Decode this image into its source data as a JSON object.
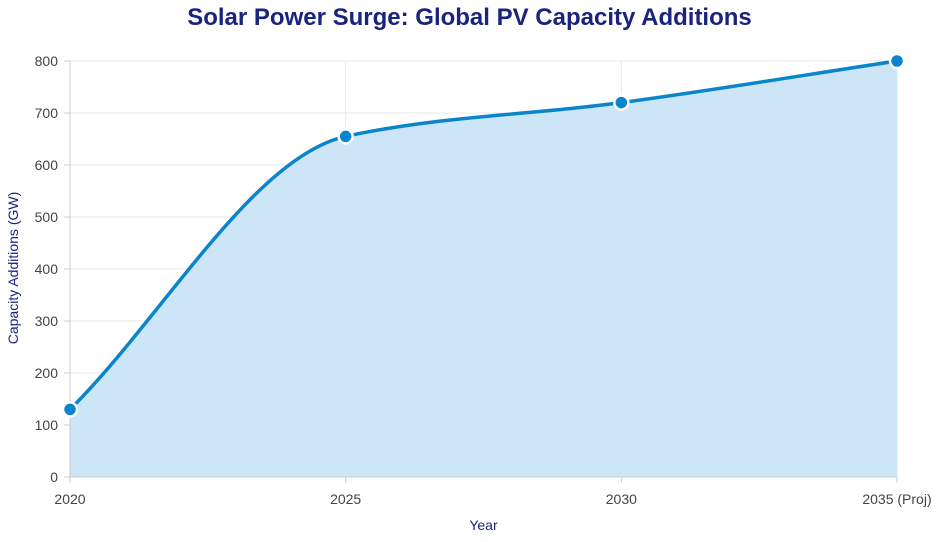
{
  "chart_data": {
    "type": "area",
    "title": "Solar Power Surge: Global PV Capacity Additions",
    "xlabel": "Year",
    "ylabel": "Capacity Additions (GW)",
    "categories": [
      "2020",
      "2025",
      "2030",
      "2035 (Proj)"
    ],
    "series": [
      {
        "name": "Capacity Additions (GW)",
        "values": [
          130,
          655,
          720,
          800
        ]
      }
    ],
    "ylim": [
      0,
      800
    ],
    "yticks": [
      0,
      100,
      200,
      300,
      400,
      500,
      600,
      700,
      800
    ],
    "grid": true,
    "colors": {
      "line": "#0a84cc",
      "fill": "#cde6f7",
      "grid": "#e8e8e8",
      "title": "#1a237e",
      "point": "#0a84cc"
    }
  }
}
